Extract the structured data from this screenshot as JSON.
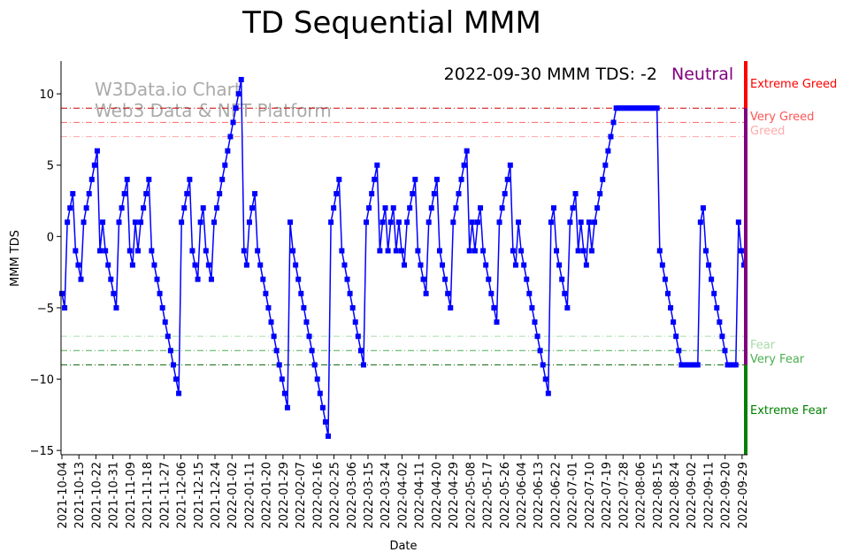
{
  "chart_data": {
    "type": "line",
    "title": "TD Sequential MMM",
    "xlabel": "Date",
    "ylabel": "MMM TDS",
    "ylim": [
      -15.3,
      12.3
    ],
    "yticks": [
      10,
      5,
      0,
      -5,
      -10,
      -15
    ],
    "ytick_labels": [
      "10",
      "5",
      "0",
      "−5",
      "−10",
      "−15"
    ],
    "xticks": [
      "2021-10-04",
      "2021-10-13",
      "2021-10-22",
      "2021-10-31",
      "2021-11-09",
      "2021-11-18",
      "2021-11-27",
      "2021-12-06",
      "2021-12-15",
      "2021-12-24",
      "2022-01-02",
      "2022-01-11",
      "2022-01-20",
      "2022-01-29",
      "2022-02-07",
      "2022-02-16",
      "2022-02-25",
      "2022-03-06",
      "2022-03-15",
      "2022-03-24",
      "2022-04-02",
      "2022-04-11",
      "2022-04-20",
      "2022-04-29",
      "2022-05-08",
      "2022-05-17",
      "2022-05-26",
      "2022-06-04",
      "2022-06-13",
      "2022-06-22",
      "2022-07-01",
      "2022-07-10",
      "2022-07-19",
      "2022-07-28",
      "2022-08-06",
      "2022-08-15",
      "2022-08-24",
      "2022-09-02",
      "2022-09-11",
      "2022-09-20",
      "2022-09-29"
    ],
    "x_start": "2021-10-04",
    "x_end": "2022-09-30",
    "series": [
      {
        "name": "MMM TDS",
        "color": "#0000ff",
        "values": [
          -4,
          -5,
          1,
          2,
          3,
          -1,
          -2,
          -3,
          1,
          2,
          3,
          4,
          5,
          6,
          -1,
          1,
          -1,
          -2,
          -3,
          -4,
          -5,
          1,
          2,
          3,
          4,
          -1,
          -2,
          1,
          -1,
          1,
          2,
          3,
          4,
          -1,
          -2,
          -3,
          -4,
          -5,
          -6,
          -7,
          -8,
          -9,
          -10,
          -11,
          1,
          2,
          3,
          4,
          -1,
          -2,
          -3,
          1,
          2,
          -1,
          -2,
          -3,
          1,
          2,
          3,
          4,
          5,
          6,
          7,
          8,
          9,
          10,
          11,
          -1,
          -2,
          1,
          2,
          3,
          -1,
          -2,
          -3,
          -4,
          -5,
          -6,
          -7,
          -8,
          -9,
          -10,
          -11,
          -12,
          1,
          -1,
          -2,
          -3,
          -4,
          -5,
          -6,
          -7,
          -8,
          -9,
          -10,
          -11,
          -12,
          -13,
          -14,
          1,
          2,
          3,
          4,
          -1,
          -2,
          -3,
          -4,
          -5,
          -6,
          -7,
          -8,
          -9,
          1,
          2,
          3,
          4,
          5,
          -1,
          1,
          2,
          -1,
          1,
          2,
          -1,
          1,
          -1,
          -2,
          1,
          2,
          3,
          4,
          -1,
          -2,
          -3,
          -4,
          1,
          2,
          3,
          4,
          -1,
          -2,
          -3,
          -4,
          -5,
          1,
          2,
          3,
          4,
          5,
          6,
          -1,
          1,
          -1,
          1,
          2,
          -1,
          -2,
          -3,
          -4,
          -5,
          -6,
          1,
          2,
          3,
          4,
          5,
          -1,
          -2,
          1,
          -1,
          -2,
          -3,
          -4,
          -5,
          -6,
          -7,
          -8,
          -9,
          -10,
          -11,
          1,
          2,
          -1,
          -2,
          -3,
          -4,
          -5,
          1,
          2,
          3,
          -1,
          1,
          -1,
          -2,
          1,
          -1,
          1,
          2,
          3,
          4,
          5,
          6,
          7,
          8,
          9,
          9,
          9,
          9,
          9,
          9,
          9,
          9,
          9,
          9,
          9,
          9,
          9,
          9,
          9,
          9,
          -1,
          -2,
          -3,
          -4,
          -5,
          -6,
          -7,
          -8,
          -9,
          -9,
          -9,
          -9,
          -9,
          -9,
          -9,
          1,
          2,
          -1,
          -2,
          -3,
          -4,
          -5,
          -6,
          -7,
          -8,
          -9,
          -9,
          -9,
          -9,
          1,
          -1,
          -2
        ]
      }
    ],
    "threshold_lines": [
      {
        "value": 9,
        "color": "#cc0000",
        "label": "Extreme Greed",
        "label_color": "#ff0000"
      },
      {
        "value": 8,
        "color": "#ff6666",
        "label": "Very Greed",
        "label_color": "#ff5555"
      },
      {
        "value": 7,
        "color": "#ffaaaa",
        "label": "Greed",
        "label_color": "#ffaaaa"
      },
      {
        "value": -7,
        "color": "#a8dca8",
        "label": "Fear",
        "label_color": "#a8dca8"
      },
      {
        "value": -8,
        "color": "#4caf50",
        "label": "Very Fear",
        "label_color": "#4caf50"
      },
      {
        "value": -9,
        "color": "#006400",
        "label": "Extreme Fear",
        "label_color": "#008000"
      }
    ],
    "zone_bar": [
      {
        "from": 9,
        "to": 12.3,
        "color": "#ff0000"
      },
      {
        "from": -9,
        "to": 9,
        "color": "#800080"
      },
      {
        "from": -15.3,
        "to": -9,
        "color": "#008000"
      }
    ],
    "annotation": {
      "text": "2022-09-30 MMM TDS: -2",
      "status": "Neutral",
      "status_color": "#800080"
    },
    "watermark": [
      "W3Data.io Chart",
      "Web3 Data & NFT Platform"
    ]
  }
}
